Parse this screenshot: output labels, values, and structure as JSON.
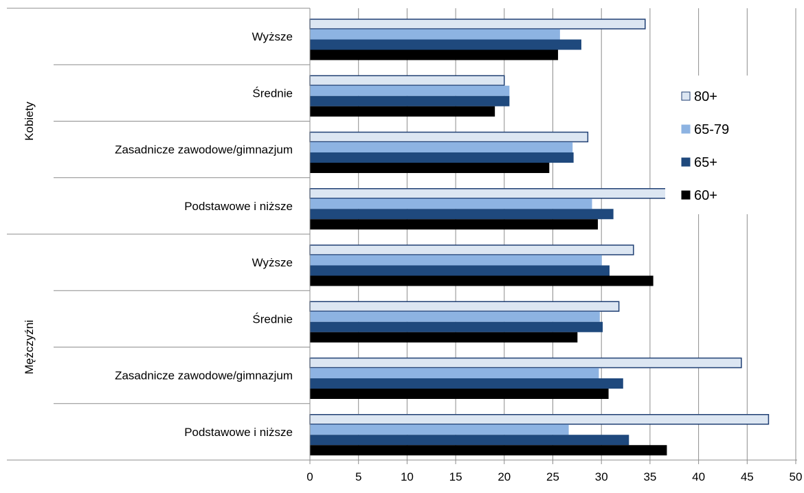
{
  "chart_data": {
    "type": "bar",
    "orientation": "horizontal",
    "grid": true,
    "legend_position": "right",
    "xlim": [
      0,
      50
    ],
    "xticks": [
      0,
      5,
      10,
      15,
      20,
      25,
      30,
      35,
      40,
      45,
      50
    ],
    "groups": [
      {
        "label": "Kobiety",
        "categories": [
          "Wyższe",
          "Średnie",
          "Zasadnicze zawodowe/gimnazjum",
          "Podstawowe i niższe"
        ]
      },
      {
        "label": "Mężczyźni",
        "categories": [
          "Wyższe",
          "Średnie",
          "Zasadnicze zawodowe/gimnazjum",
          "Podstawowe i niższe"
        ]
      }
    ],
    "categories": [
      "Kobiety | Wyższe",
      "Kobiety | Średnie",
      "Kobiety | Zasadnicze zawodowe/gimnazjum",
      "Kobiety | Podstawowe i niższe",
      "Mężczyźni | Wyższe",
      "Mężczyźni | Średnie",
      "Mężczyźni | Zasadnicze zawodowe/gimnazjum",
      "Mężczyźni | Podstawowe i niższe"
    ],
    "series": [
      {
        "name": "80+",
        "color": "#dce6f2",
        "stroke": "#1f3f73",
        "values": [
          34.5,
          20.0,
          28.6,
          36.7,
          33.3,
          31.8,
          44.4,
          47.2
        ]
      },
      {
        "name": "65-79",
        "color": "#8db3e2",
        "stroke": "#8db3e2",
        "values": [
          25.7,
          20.5,
          27.0,
          29.0,
          30.0,
          29.8,
          29.7,
          26.6
        ]
      },
      {
        "name": "65+",
        "color": "#1f497d",
        "stroke": "#1f497d",
        "values": [
          27.9,
          20.5,
          27.1,
          31.2,
          30.8,
          30.1,
          32.2,
          32.8
        ]
      },
      {
        "name": "60+",
        "color": "#000000",
        "stroke": "#000000",
        "values": [
          25.5,
          19.0,
          24.6,
          29.6,
          35.3,
          27.5,
          30.7,
          36.7
        ]
      }
    ],
    "legend_order": [
      "80+",
      "65-79",
      "65+",
      "60+"
    ],
    "title": "",
    "xlabel": "",
    "ylabel": ""
  }
}
